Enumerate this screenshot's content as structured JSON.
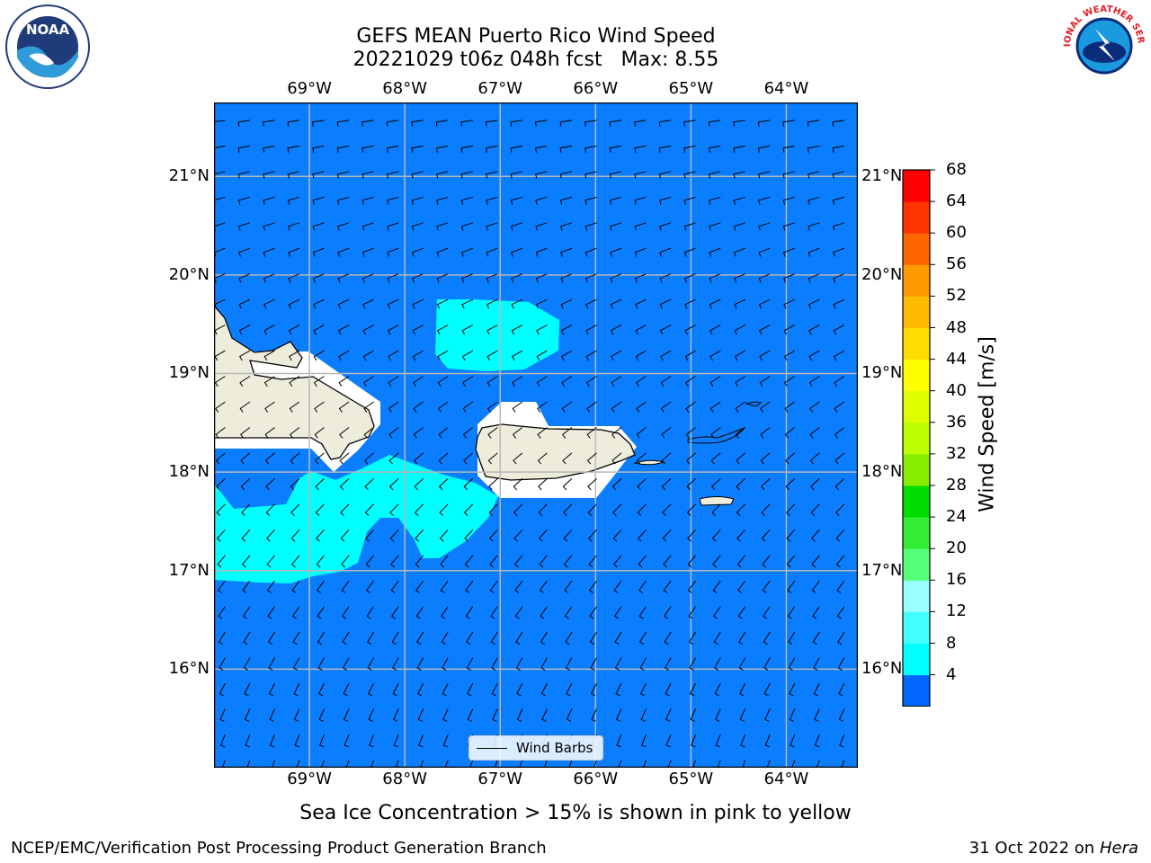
{
  "title": {
    "line1": "GEFS MEAN Puerto Rico Wind Speed",
    "line2": "20221029 t06z 048h fcst   Max: 8.55"
  },
  "axes": {
    "lon_labels": [
      "69°W",
      "68°W",
      "67°W",
      "66°W",
      "65°W",
      "64°W"
    ],
    "lat_labels": [
      "21°N",
      "20°N",
      "19°N",
      "18°N",
      "17°N",
      "16°N"
    ],
    "lon_range": [
      -70.0,
      -63.25
    ],
    "lat_range": [
      15.0,
      21.75
    ],
    "grid": true
  },
  "legend": {
    "label": "Wind Barbs",
    "placement": "bottom-center"
  },
  "colorbar": {
    "label": "Wind Speed [m/s]",
    "ticks": [
      "68",
      "64",
      "60",
      "56",
      "52",
      "48",
      "44",
      "40",
      "36",
      "32",
      "28",
      "24",
      "20",
      "16",
      "12",
      "8",
      "4"
    ],
    "colors": [
      "#0066ff",
      "#00ffff",
      "#44ffff",
      "#99ffff",
      "#55ff77",
      "#33ee33",
      "#00dd00",
      "#88ee00",
      "#bbff00",
      "#ddff00",
      "#ffff00",
      "#ffdd00",
      "#ffbb00",
      "#ff9900",
      "#ff6600",
      "#ff3300",
      "#ff0000"
    ],
    "under_color": "#0000ff"
  },
  "colors": {
    "ocean": "#0a7eff",
    "wind_band": "#00ffff",
    "land": "#eeeddc",
    "mask": "#ffffff"
  },
  "note": "Sea Ice Concentration > 15% is shown in pink to yellow",
  "footer": {
    "left": "NCEP/EMC/Verification Post Processing Product Generation Branch",
    "right_date": "31 Oct 2022 on",
    "right_machine": "Hera"
  },
  "logos": {
    "noaa_text": "NOAA",
    "nws_text": "NATIONAL WEATHER SERVICE"
  }
}
